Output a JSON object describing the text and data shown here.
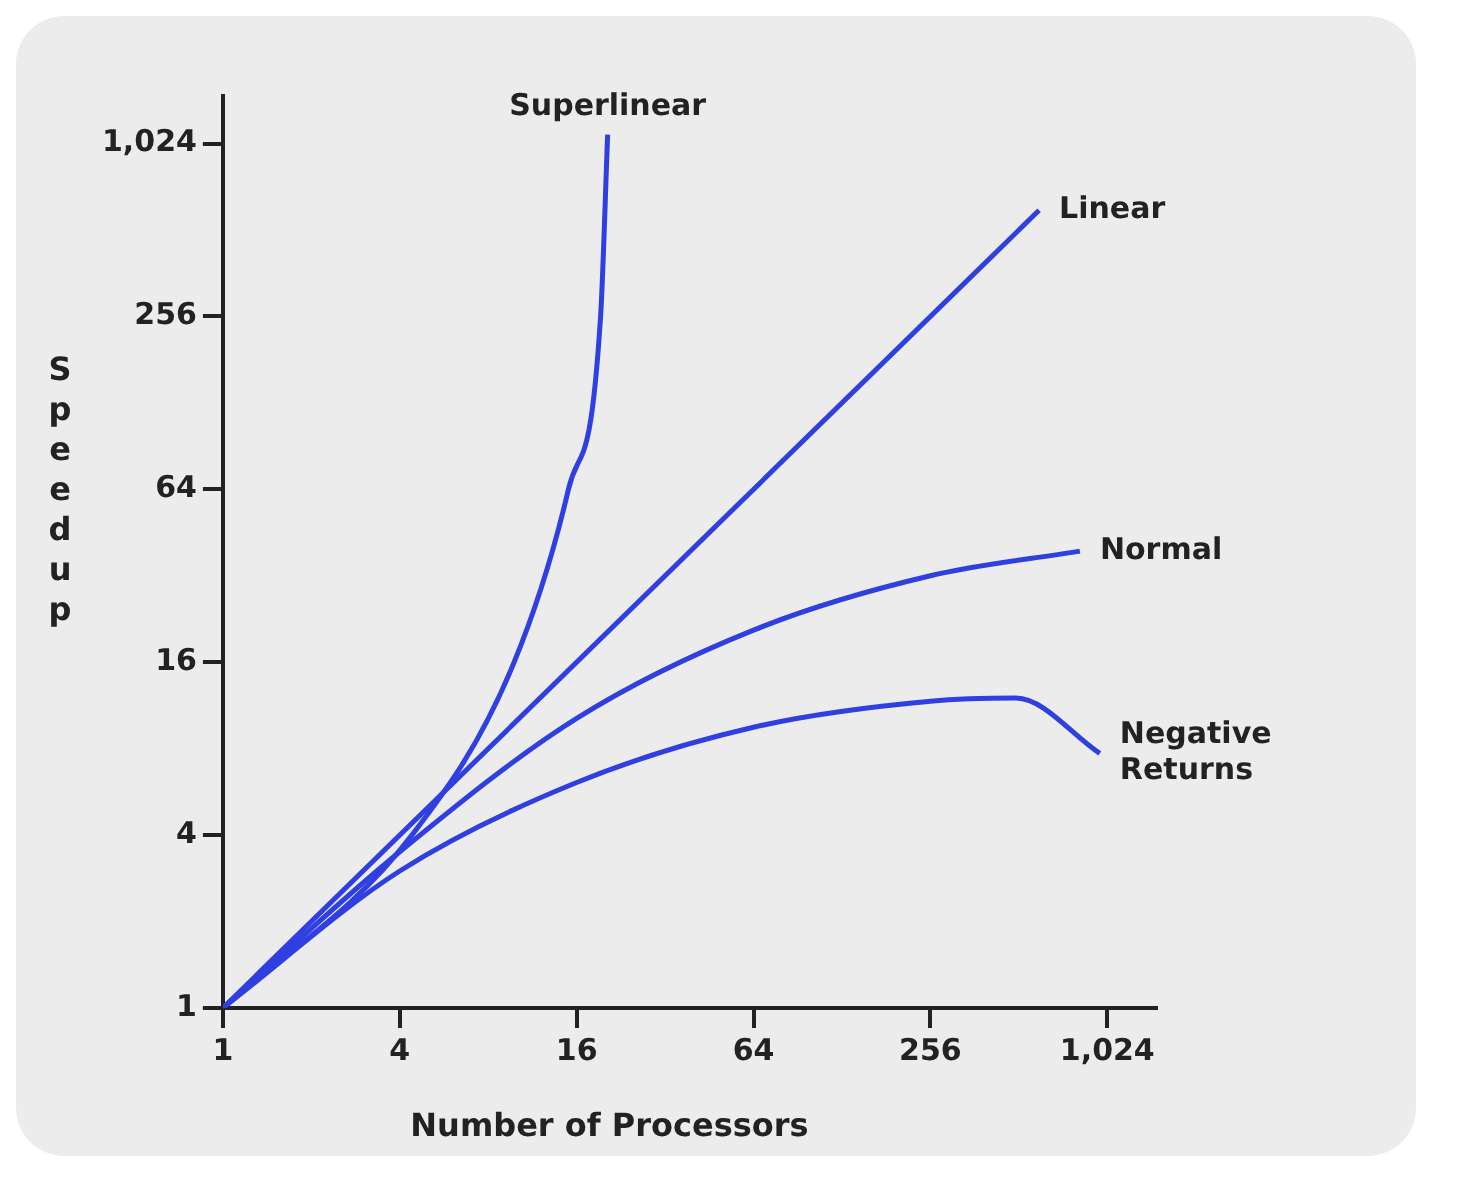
{
  "chart_data": {
    "type": "line",
    "xlabel": "Number of Processors",
    "ylabel": "Speedup",
    "log": "xy",
    "grid": false,
    "legend": false,
    "marker": "none",
    "line_style": "solid",
    "xlim": [
      1,
      1500
    ],
    "ylim": [
      1,
      1500
    ],
    "xticks": [
      1,
      4,
      16,
      64,
      256,
      {
        "value": 1024,
        "label": "1,024"
      }
    ],
    "yticks": [
      1,
      4,
      16,
      64,
      256,
      {
        "value": 1024,
        "label": "1,024"
      }
    ],
    "series": [
      {
        "name": "Superlinear",
        "color": "#2f3fe0",
        "x": [
          1,
          4.4,
          9.8,
          15,
          19.3,
          20.4
        ],
        "values": [
          1,
          4,
          16,
          64,
          256,
          1100
        ]
      },
      {
        "name": "Linear",
        "color": "#2f3fe0",
        "x": [
          1,
          600
        ],
        "values": [
          1,
          600
        ]
      },
      {
        "name": "Normal",
        "color": "#2f3fe0",
        "x": [
          1,
          4,
          16,
          64,
          256,
          826
        ],
        "values": [
          1,
          3.5,
          10.2,
          20.7,
          32,
          39
        ]
      },
      {
        "name": "Negative Returns",
        "color": "#2f3fe0",
        "x": [
          1,
          4,
          16,
          64,
          256,
          500,
          966
        ],
        "values": [
          1,
          3,
          6.1,
          9.5,
          11.7,
          12,
          7.7
        ]
      }
    ]
  }
}
